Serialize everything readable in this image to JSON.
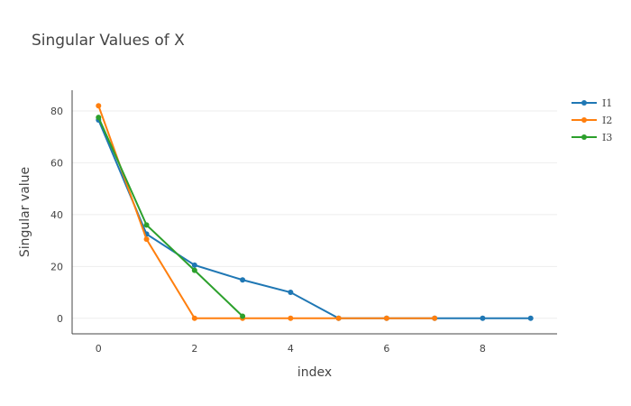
{
  "chart_data": {
    "type": "line",
    "title": "Singular Values of X",
    "xlabel": "index",
    "ylabel": "Singular value",
    "xlim": [
      -0.55,
      9.55
    ],
    "ylim": [
      -6,
      88
    ],
    "x_ticks": [
      0,
      2,
      4,
      6,
      8
    ],
    "y_ticks": [
      0,
      20,
      40,
      60,
      80
    ],
    "grid": true,
    "legend_position": "top-right",
    "series": [
      {
        "name": "I1",
        "color": "#1f77b4",
        "x": [
          0,
          1,
          2,
          3,
          4,
          5,
          6,
          7,
          8,
          9
        ],
        "y": [
          76.5,
          32.5,
          20.5,
          14.8,
          10,
          0,
          0,
          0,
          0,
          0
        ]
      },
      {
        "name": "I2",
        "color": "#ff7f0e",
        "x": [
          0,
          1,
          2,
          3,
          4,
          5,
          6,
          7
        ],
        "y": [
          82,
          30.5,
          0,
          0,
          0,
          0,
          0,
          0
        ]
      },
      {
        "name": "I3",
        "color": "#2ca02c",
        "x": [
          0,
          1,
          2,
          3
        ],
        "y": [
          77.5,
          36,
          18.5,
          0.8
        ]
      }
    ]
  }
}
